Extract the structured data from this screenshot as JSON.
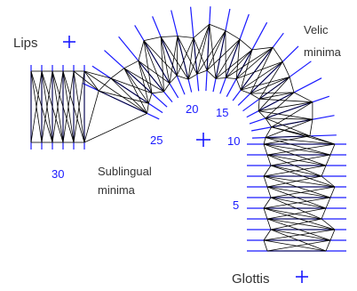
{
  "labels": {
    "lips": "Lips",
    "velic_line1": "Velic",
    "velic_line2": "minima",
    "sublingual_line1": "Sublingual",
    "sublingual_line2": "minima",
    "glottis": "Glottis"
  },
  "gridline_numbers": [
    "30",
    "25",
    "20",
    "15",
    "10",
    "5"
  ],
  "colors": {
    "gridline": "#1a1aff",
    "mesh": "#000000",
    "text": "#333333"
  }
}
